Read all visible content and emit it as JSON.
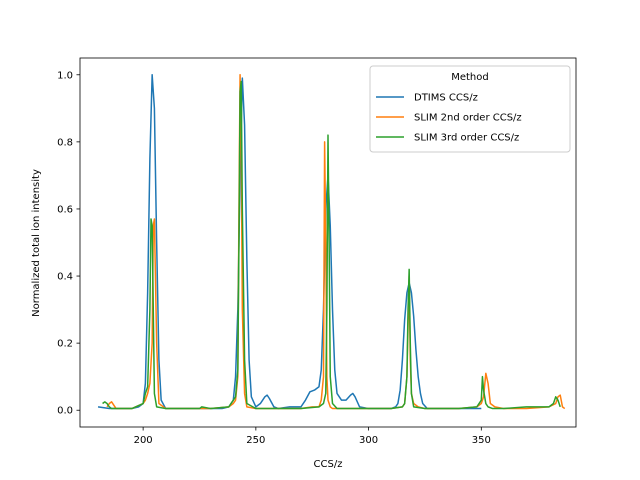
{
  "chart_data": {
    "type": "line",
    "xlabel": "CCS/z",
    "ylabel": "Normalized total ion intensity",
    "xlim": [
      172,
      392
    ],
    "ylim": [
      -0.05,
      1.05
    ],
    "xticks": [
      200,
      250,
      300,
      350
    ],
    "yticks": [
      0.0,
      0.2,
      0.4,
      0.6,
      0.8,
      1.0
    ],
    "ytick_labels": [
      "0.0",
      "0.2",
      "0.4",
      "0.6",
      "0.8",
      "1.0"
    ],
    "grid": false,
    "legend": {
      "title": "Method",
      "position": "top-right"
    },
    "series": [
      {
        "name": "DTIMS CCS/z",
        "color": "#1f77b4",
        "x": [
          180,
          185,
          190,
          195,
          198,
          200,
          201,
          202,
          203,
          204,
          205,
          206,
          207,
          208,
          210,
          215,
          220,
          225,
          230,
          235,
          238,
          240,
          241,
          242,
          243,
          244,
          245,
          246,
          247,
          248,
          250,
          252,
          254,
          255,
          256,
          258,
          260,
          265,
          270,
          272,
          274,
          276,
          278,
          279,
          280,
          281,
          282,
          283,
          284,
          285,
          286,
          288,
          290,
          292,
          293,
          294,
          296,
          300,
          305,
          310,
          312,
          313,
          314,
          315,
          316,
          317,
          318,
          319,
          320,
          321,
          322,
          323,
          324,
          326,
          330,
          340,
          350
        ],
        "y": [
          0.01,
          0.005,
          0.005,
          0.005,
          0.01,
          0.02,
          0.08,
          0.35,
          0.75,
          1.0,
          0.9,
          0.5,
          0.15,
          0.03,
          0.005,
          0.005,
          0.005,
          0.005,
          0.005,
          0.005,
          0.01,
          0.03,
          0.1,
          0.3,
          0.7,
          0.99,
          0.85,
          0.45,
          0.15,
          0.04,
          0.01,
          0.02,
          0.04,
          0.045,
          0.035,
          0.01,
          0.005,
          0.01,
          0.01,
          0.03,
          0.055,
          0.06,
          0.07,
          0.12,
          0.3,
          0.6,
          0.7,
          0.55,
          0.3,
          0.12,
          0.05,
          0.03,
          0.03,
          0.045,
          0.05,
          0.04,
          0.01,
          0.005,
          0.005,
          0.005,
          0.01,
          0.02,
          0.06,
          0.15,
          0.27,
          0.35,
          0.38,
          0.35,
          0.28,
          0.18,
          0.1,
          0.05,
          0.02,
          0.005,
          0.005,
          0.005,
          0.005
        ]
      },
      {
        "name": "SLIM 2nd order CCS/z",
        "color": "#ff7f0e",
        "x": [
          184,
          185,
          186,
          187,
          188,
          190,
          195,
          200,
          201,
          202,
          203,
          204,
          204.5,
          205,
          206,
          207,
          210,
          220,
          230,
          238,
          240,
          241,
          242,
          242.5,
          243,
          243.5,
          244,
          245,
          246,
          250,
          260,
          270,
          275,
          278,
          279,
          280,
          280.5,
          281,
          281.5,
          282,
          283,
          284,
          286,
          290,
          300,
          310,
          315,
          316,
          317,
          318,
          318.5,
          319,
          320,
          322,
          325,
          330,
          340,
          348,
          350,
          351,
          352,
          353,
          354,
          356,
          360,
          370,
          380,
          383,
          384,
          385,
          386,
          387
        ],
        "y": [
          0.01,
          0.02,
          0.025,
          0.015,
          0.005,
          0.005,
          0.005,
          0.02,
          0.03,
          0.05,
          0.08,
          0.2,
          0.55,
          0.57,
          0.2,
          0.02,
          0.005,
          0.005,
          0.005,
          0.01,
          0.02,
          0.03,
          0.1,
          0.6,
          1.0,
          0.8,
          0.3,
          0.05,
          0.01,
          0.005,
          0.005,
          0.005,
          0.01,
          0.01,
          0.03,
          0.1,
          0.8,
          0.5,
          0.1,
          0.03,
          0.01,
          0.005,
          0.005,
          0.005,
          0.005,
          0.005,
          0.01,
          0.02,
          0.1,
          0.4,
          0.15,
          0.05,
          0.02,
          0.01,
          0.005,
          0.005,
          0.005,
          0.01,
          0.02,
          0.04,
          0.11,
          0.08,
          0.02,
          0.01,
          0.005,
          0.005,
          0.01,
          0.02,
          0.04,
          0.045,
          0.01,
          0.005
        ]
      },
      {
        "name": "SLIM 3rd order CCS/z",
        "color": "#2ca02c",
        "x": [
          182,
          183,
          184,
          185,
          186,
          188,
          190,
          195,
          200,
          201,
          202,
          203,
          203.5,
          204,
          204.5,
          205,
          206,
          210,
          220,
          225,
          226,
          230,
          238,
          240,
          241,
          242,
          242.5,
          243,
          243.5,
          244,
          245,
          246,
          250,
          260,
          270,
          278,
          280,
          281,
          281.5,
          282,
          282.5,
          283,
          284,
          286,
          290,
          300,
          310,
          315,
          316,
          317,
          317.5,
          318,
          318.5,
          319,
          320,
          325,
          330,
          340,
          348,
          349,
          350,
          350.5,
          351,
          352,
          353,
          355,
          360,
          370,
          380,
          382,
          383,
          384,
          385
        ],
        "y": [
          0.02,
          0.025,
          0.02,
          0.01,
          0.005,
          0.005,
          0.005,
          0.005,
          0.02,
          0.05,
          0.07,
          0.3,
          0.57,
          0.55,
          0.3,
          0.05,
          0.01,
          0.005,
          0.005,
          0.005,
          0.01,
          0.005,
          0.01,
          0.03,
          0.04,
          0.12,
          0.5,
          0.95,
          0.98,
          0.6,
          0.15,
          0.02,
          0.005,
          0.005,
          0.005,
          0.01,
          0.02,
          0.05,
          0.3,
          0.82,
          0.5,
          0.1,
          0.02,
          0.005,
          0.005,
          0.005,
          0.005,
          0.01,
          0.02,
          0.1,
          0.3,
          0.42,
          0.2,
          0.05,
          0.01,
          0.005,
          0.005,
          0.005,
          0.01,
          0.02,
          0.03,
          0.1,
          0.06,
          0.02,
          0.01,
          0.005,
          0.005,
          0.01,
          0.01,
          0.02,
          0.04,
          0.03,
          0.01
        ]
      }
    ]
  }
}
